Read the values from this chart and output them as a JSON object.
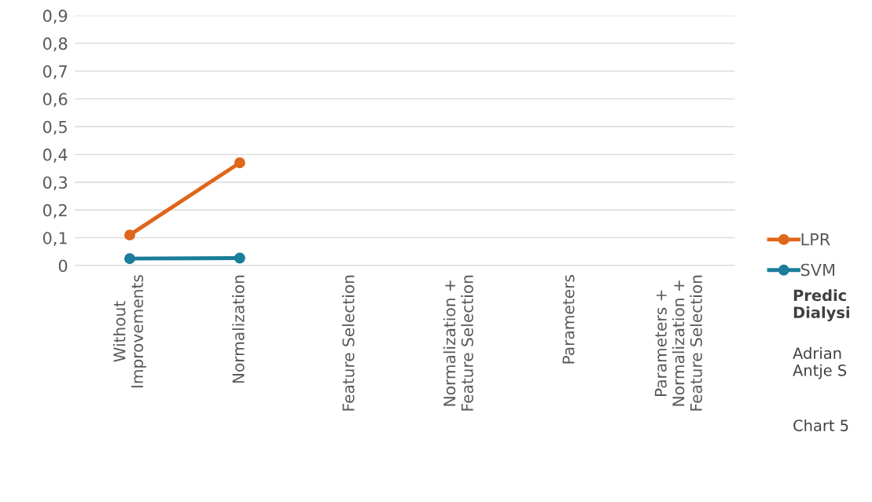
{
  "chart_data": {
    "type": "line",
    "categories": [
      "Without\nImprovements",
      "Normalization",
      "Feature Selection",
      "Normalization +\nFeature Selection",
      "Parameters",
      "Parameters +\nNormalization +\nFeature Selection"
    ],
    "series": [
      {
        "name": "LPR",
        "color": "#e0661a",
        "values": [
          0.11,
          0.37,
          null,
          null,
          null,
          null
        ]
      },
      {
        "name": "SVM",
        "color": "#1a7d99",
        "values": [
          0.025,
          0.027,
          null,
          null,
          null,
          null
        ]
      }
    ],
    "ylim": [
      0,
      0.9
    ],
    "yticks": [
      0,
      {
        "value": 0.1,
        "label": "0,1"
      },
      {
        "value": 0.2,
        "label": "0,2"
      },
      {
        "value": 0.3,
        "label": "0,3"
      },
      {
        "value": 0.4,
        "label": "0,4"
      },
      {
        "value": 0.5,
        "label": "0,5"
      },
      {
        "value": 0.6,
        "label": "0,6"
      },
      {
        "value": 0.7,
        "label": "0,7"
      },
      {
        "value": 0.8,
        "label": "0,8"
      },
      {
        "value": 0.9,
        "label": "0,9"
      }
    ],
    "grid": "y",
    "legend": "right",
    "marker": "circle",
    "line_style": "solid",
    "annotations": [
      "Predic\nDialysi",
      "Adrian\nAntje S",
      "Chart 5"
    ]
  }
}
